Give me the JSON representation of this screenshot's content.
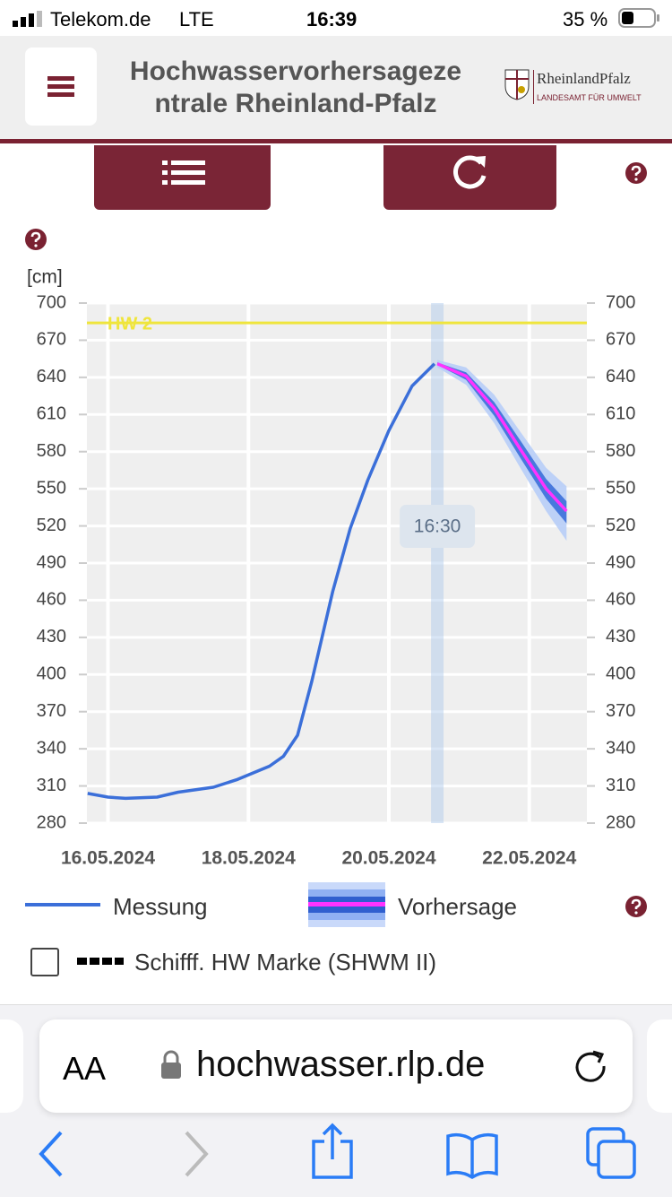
{
  "status_bar": {
    "carrier": "Telekom.de",
    "network": "LTE",
    "time": "16:39",
    "battery": "35 %"
  },
  "header": {
    "title_lines": [
      "Hochwasservorhersageze",
      "ntrale Rheinland-Pfalz"
    ],
    "logo_name": "RheinlandPfalz",
    "logo_sub": "LANDESAMT FÜR UMWELT"
  },
  "chart_data": {
    "type": "line",
    "y_label": "[cm]",
    "xlim": [
      15.7,
      22.82
    ],
    "xticks": [
      {
        "value": 16,
        "label": "16.05.2024"
      },
      {
        "value": 18,
        "label": "18.05.2024"
      },
      {
        "value": 20,
        "label": "20.05.2024"
      },
      {
        "value": 22,
        "label": "22.05.2024"
      }
    ],
    "ylim": [
      280,
      700
    ],
    "yticks": [
      280,
      310,
      340,
      370,
      400,
      430,
      460,
      490,
      520,
      550,
      580,
      610,
      640,
      670,
      700
    ],
    "grid": true,
    "series": [
      {
        "name": "Messung",
        "color": "#3b6fd9",
        "x": [
          15.71,
          16.0,
          16.25,
          16.7,
          17.0,
          17.5,
          17.83,
          18.3,
          18.5,
          18.7,
          18.9,
          19.2,
          19.45,
          19.7,
          20.0,
          20.33,
          20.65
        ],
        "values": [
          304,
          301,
          300,
          301,
          305,
          309,
          315,
          326,
          334,
          351,
          394,
          467,
          518,
          557,
          597,
          633,
          651
        ]
      },
      {
        "name": "Vorhersage",
        "color": "#ff33ff",
        "x": [
          20.69,
          21.1,
          21.5,
          21.86,
          22.24,
          22.53
        ],
        "values": [
          651,
          641,
          615,
          583,
          550,
          532
        ],
        "bands": [
          {
            "color": "#b7cdf7",
            "upper": [
              654,
              648,
              626,
              597,
              567,
              552
            ],
            "lower": [
              648,
              634,
              603,
              568,
              532,
              508
            ]
          },
          {
            "color": "#3b6fd9",
            "upper": [
              652,
              644,
              620,
              590,
              558,
              540
            ],
            "lower": [
              650,
              638,
              609,
              576,
              542,
              522
            ]
          }
        ]
      }
    ],
    "hlines": [
      {
        "value": 684,
        "label": "HW 2",
        "color": "#efe53c"
      }
    ],
    "now": {
      "x": 20.69,
      "label": "16:30"
    }
  },
  "options": {
    "shwm_label": "Schifff. HW Marke (SHWM II)"
  },
  "browser": {
    "text_size": "AA",
    "url": "hochwasser.rlp.de"
  }
}
